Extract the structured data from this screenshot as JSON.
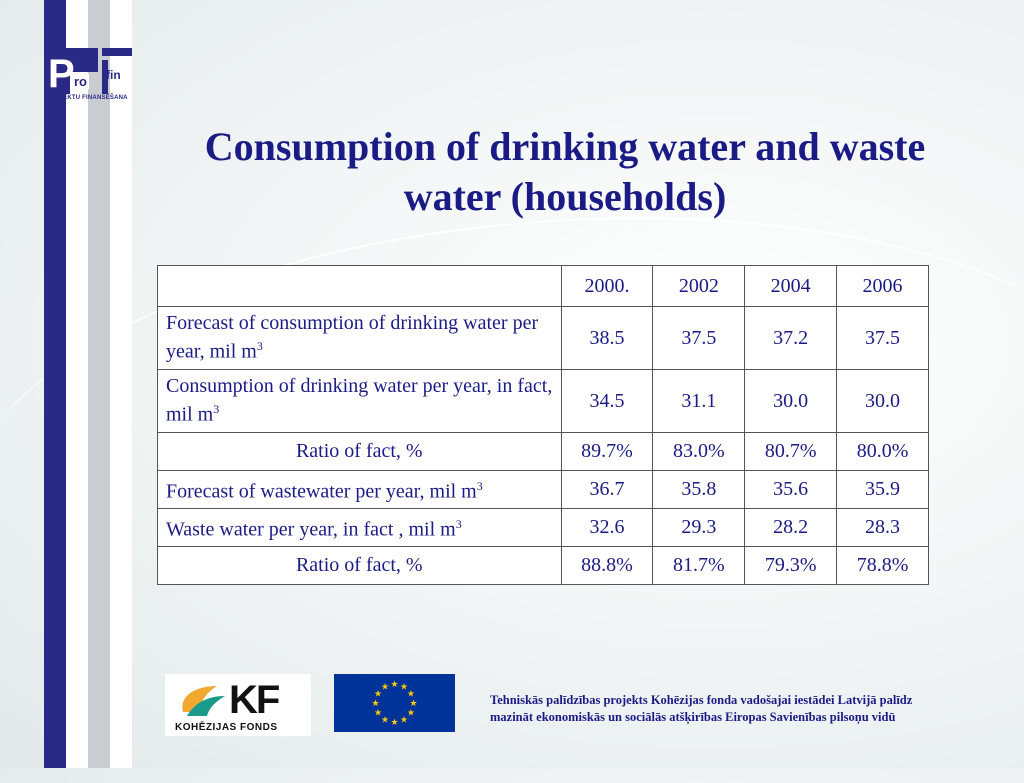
{
  "logo": {
    "letters_p": "P",
    "letters_ro": "ro",
    "letters_fin": "fin",
    "sub_left": "PROJEKTU",
    "sub_right": "FINANSĒŠANA"
  },
  "title": "Consumption of drinking water and waste water (households)",
  "table": {
    "headers": [
      "",
      "2000.",
      "2002",
      "2004",
      "2006"
    ],
    "rows": [
      {
        "label": "Forecast of consumption of drinking water per year, mil m",
        "unit_sup": "3",
        "values": [
          "38.5",
          "37.5",
          "37.2",
          "37.5"
        ]
      },
      {
        "label": "Consumption of drinking water per year, in fact, mil m",
        "unit_sup": "3",
        "values": [
          "34.5",
          "31.1",
          "30.0",
          "30.0"
        ]
      },
      {
        "label": "Ratio of fact, %",
        "unit_sup": "",
        "values": [
          "89.7%",
          "83.0%",
          "80.7%",
          "80.0%"
        ]
      },
      {
        "label": "Forecast of  wastewater per year, mil m",
        "unit_sup": "3",
        "values": [
          "36.7",
          "35.8",
          "35.6",
          "35.9"
        ]
      },
      {
        "label": "Waste water per year, in fact , mil m",
        "unit_sup": "3",
        "values": [
          "32.6",
          "29.3",
          "28.2",
          "28.3"
        ]
      },
      {
        "label": "Ratio of fact, %",
        "unit_sup": "",
        "values": [
          "88.8%",
          "81.7%",
          "79.3%",
          "78.8%"
        ]
      }
    ]
  },
  "footer": {
    "kf_logo_text": "KF",
    "kf_logo_sub": "KOHĒZIJAS FONDS",
    "text_line1": "Tehniskās palīdzības projekts Kohēzijas fonda vadošajai iestādei Latvijā palīdz",
    "text_line2": "mazināt ekonomiskās un sociālās atšķirības Eiropas Savienības pilsoņu vidū"
  },
  "colors": {
    "title": "#1b1b85",
    "bar_dark": "#2a2a86",
    "bar_grey": "#c9cdd2",
    "eu_blue": "#003399",
    "eu_star": "#ffcc00"
  }
}
